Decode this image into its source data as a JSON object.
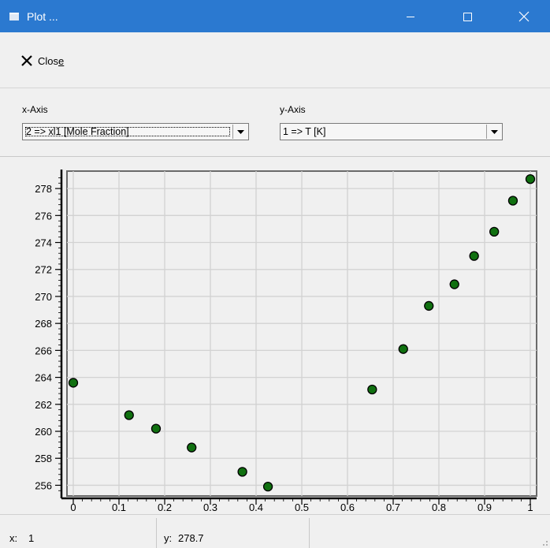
{
  "window": {
    "title": "Plot ...",
    "icon": "window-app-icon",
    "controls": [
      "minimize-icon",
      "maximize-icon",
      "close-icon"
    ]
  },
  "toolbar": {
    "close_label_prefix": "Clos",
    "close_label_accel": "e",
    "close_icon": "x-icon"
  },
  "selectors": {
    "x_axis_label": "x-Axis",
    "x_axis_value": "2 => xl1 [Mole Fraction]",
    "y_axis_label": "y-Axis",
    "y_axis_value": "1 => T [K]"
  },
  "chart_data": {
    "type": "scatter",
    "xlim": [
      0,
      1
    ],
    "ylim": [
      255.5,
      279
    ],
    "x_ticks": [
      "0",
      "0.1",
      "0.2",
      "0.3",
      "0.4",
      "0.5",
      "0.6",
      "0.7",
      "0.8",
      "0.9",
      "1"
    ],
    "y_ticks": [
      "256",
      "258",
      "260",
      "262",
      "264",
      "266",
      "268",
      "270",
      "272",
      "274",
      "276",
      "278"
    ],
    "grid": true,
    "point_color": "#107010",
    "points": [
      {
        "x": 0.0,
        "y": 263.6
      },
      {
        "x": 0.122,
        "y": 261.2
      },
      {
        "x": 0.181,
        "y": 260.2
      },
      {
        "x": 0.259,
        "y": 258.8
      },
      {
        "x": 0.37,
        "y": 257.0
      },
      {
        "x": 0.426,
        "y": 255.9
      },
      {
        "x": 0.654,
        "y": 263.1
      },
      {
        "x": 0.722,
        "y": 266.1
      },
      {
        "x": 0.778,
        "y": 269.3
      },
      {
        "x": 0.834,
        "y": 270.9
      },
      {
        "x": 0.877,
        "y": 273.0
      },
      {
        "x": 0.921,
        "y": 274.8
      },
      {
        "x": 0.962,
        "y": 277.1
      },
      {
        "x": 1.0,
        "y": 278.7
      }
    ]
  },
  "status": {
    "x_label": "x:",
    "x_value": "1",
    "y_label": "y:",
    "y_value": "278.7"
  }
}
